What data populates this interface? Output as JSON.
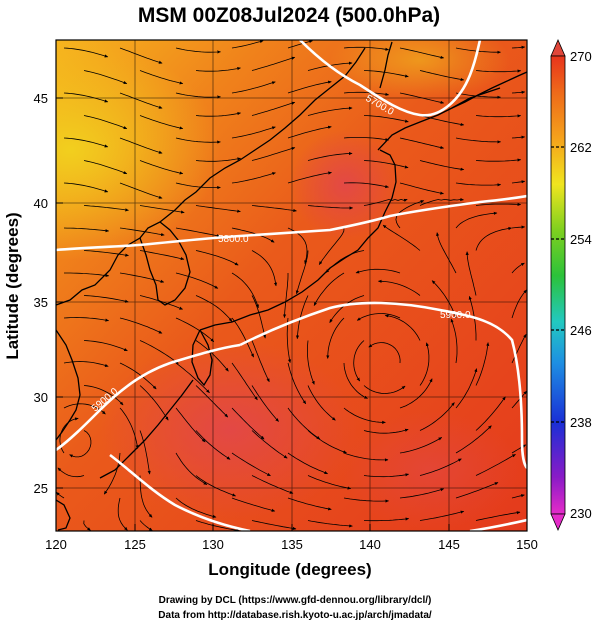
{
  "title": "MSM 00Z08Jul2024 (500.0hPa)",
  "xlabel": "Longitude (degrees)",
  "ylabel": "Latitude  (degrees)",
  "xticks": [
    "120",
    "125",
    "130",
    "135",
    "140",
    "145",
    "150"
  ],
  "yticks": [
    "25",
    "30",
    "35",
    "40",
    "45"
  ],
  "colorbar": {
    "ticks": [
      "270",
      "262",
      "254",
      "246",
      "238",
      "230"
    ],
    "range": [
      230,
      270
    ],
    "colors": [
      "#e52bc9",
      "#7a1cc6",
      "#1a2fd6",
      "#1fa2e0",
      "#22c9a0",
      "#2cc23a",
      "#9fd41e",
      "#f0e51f",
      "#f5a21c",
      "#ee6a1a",
      "#e8341c",
      "#e0463a"
    ]
  },
  "contour_labels": [
    "5700.0",
    "5800.0",
    "5900.0",
    "5900.0"
  ],
  "credits": {
    "line1": "Drawing by DCL (https://www.gfd-dennou.org/library/dcl/)",
    "line2": "Data from http://database.rish.kyoto-u.ac.jp/arch/jmadata/"
  },
  "map": {
    "lon_range": [
      120,
      150
    ],
    "lat_range": [
      22.5,
      47.5
    ]
  }
}
